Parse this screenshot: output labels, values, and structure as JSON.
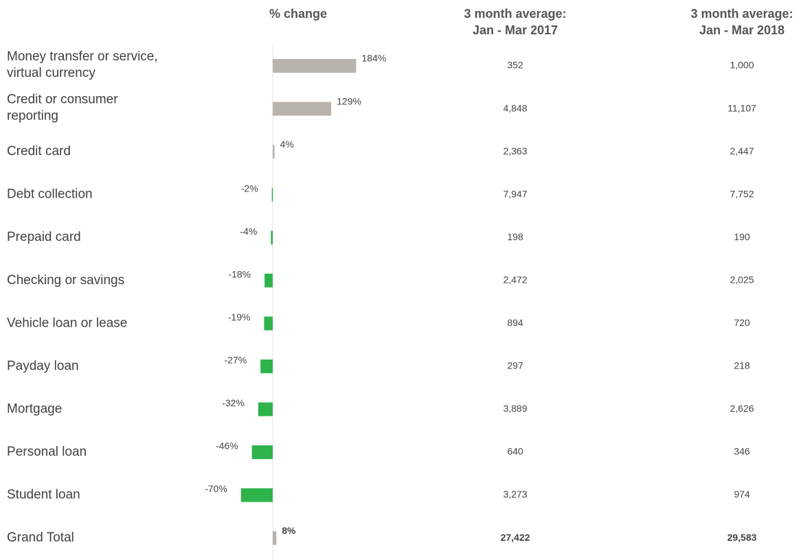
{
  "chart_data": {
    "type": "bar",
    "title": "% change",
    "categories": [
      [
        "Money transfer or service,",
        "virtual currency"
      ],
      [
        "Credit or consumer",
        "reporting"
      ],
      [
        "Credit card"
      ],
      [
        "Debt collection"
      ],
      [
        "Prepaid card"
      ],
      [
        "Checking or savings"
      ],
      [
        "Vehicle loan or lease"
      ],
      [
        "Payday loan"
      ],
      [
        "Mortgage"
      ],
      [
        "Personal loan"
      ],
      [
        "Student loan"
      ],
      [
        "Grand Total"
      ]
    ],
    "values": [
      184,
      129,
      4,
      -2,
      -4,
      -18,
      -19,
      -27,
      -32,
      -46,
      -70,
      8
    ],
    "value_labels": [
      "184%",
      "129%",
      "4%",
      "-2%",
      "-4%",
      "-18%",
      "-19%",
      "-27%",
      "-32%",
      "-46%",
      "-70%",
      "8%"
    ],
    "positive_color": "#b9b3ae",
    "negative_color": "#2fb34b"
  },
  "table": {
    "columns": [
      {
        "header": [
          "3 month average:",
          "Jan - Mar 2017"
        ],
        "values": [
          "352",
          "4,848",
          "2,363",
          "7,947",
          "198",
          "2,472",
          "894",
          "297",
          "3,889",
          "640",
          "3,273",
          "27,422"
        ]
      },
      {
        "header": [
          "3 month average:",
          "Jan - Mar 2018"
        ],
        "values": [
          "1,000",
          "11,107",
          "2,447",
          "7,752",
          "190",
          "2,025",
          "720",
          "218",
          "2,626",
          "346",
          "974",
          "29,583"
        ]
      }
    ]
  }
}
